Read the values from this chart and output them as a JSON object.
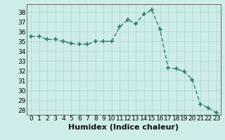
{
  "x": [
    0,
    1,
    2,
    3,
    4,
    5,
    6,
    7,
    8,
    9,
    10,
    11,
    12,
    13,
    14,
    15,
    16,
    17,
    18,
    19,
    20,
    21,
    22,
    23
  ],
  "y": [
    35.5,
    35.5,
    35.2,
    35.2,
    35.0,
    34.8,
    34.7,
    34.7,
    35.0,
    35.0,
    35.0,
    36.5,
    37.2,
    36.8,
    37.8,
    38.2,
    36.2,
    32.3,
    32.2,
    31.9,
    31.1,
    28.6,
    28.2,
    27.7
  ],
  "line_color": "#2e7d6e",
  "marker": "+",
  "marker_size": 4,
  "marker_linewidth": 1.2,
  "line_width": 1.0,
  "bg_color": "#ceecea",
  "grid_color": "#b0d8d4",
  "xlabel": "Humidex (Indice chaleur)",
  "xlabel_fontsize": 8,
  "ylim_min": 27.5,
  "ylim_max": 38.8,
  "yticks": [
    28,
    29,
    30,
    31,
    32,
    33,
    34,
    35,
    36,
    37,
    38
  ],
  "xticks": [
    0,
    1,
    2,
    3,
    4,
    5,
    6,
    7,
    8,
    9,
    10,
    11,
    12,
    13,
    14,
    15,
    16,
    17,
    18,
    19,
    20,
    21,
    22,
    23
  ],
  "tick_fontsize": 6.5,
  "spine_color": "#666666"
}
